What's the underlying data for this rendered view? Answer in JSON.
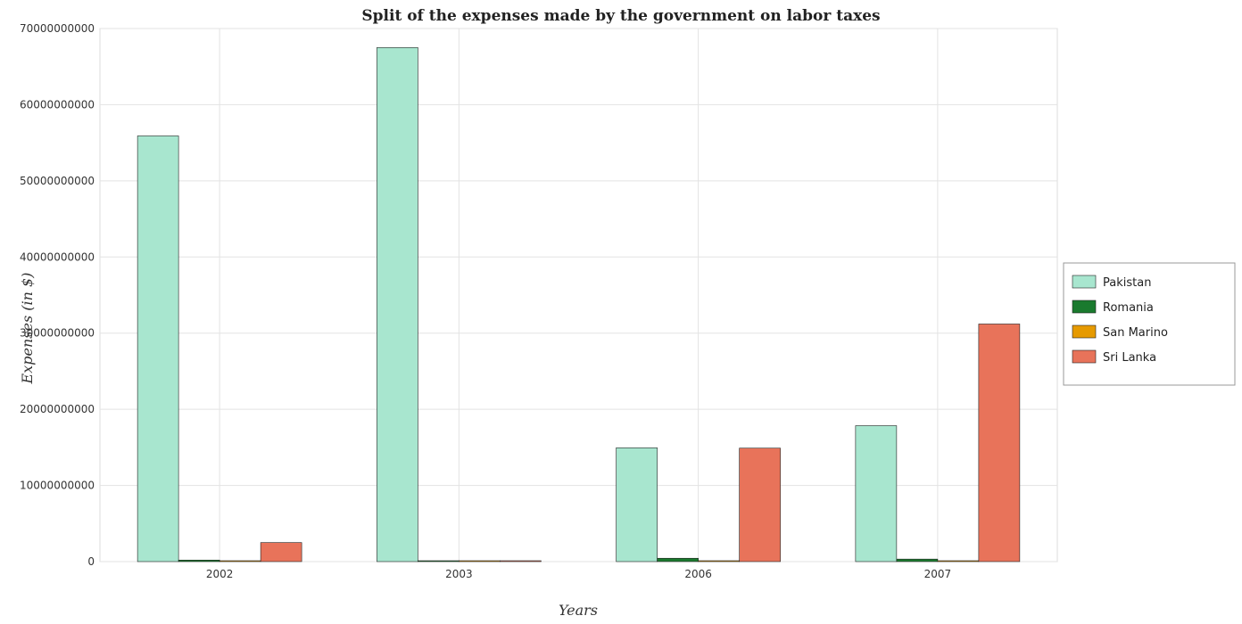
{
  "chart_data": {
    "type": "bar",
    "title": "Split of the expenses made by the government on labor taxes",
    "xlabel": "Years",
    "ylabel": "Expenses (in $)",
    "categories": [
      "2002",
      "2003",
      "2006",
      "2007"
    ],
    "ylim": [
      0,
      70000000000
    ],
    "yticks": [
      0,
      10000000000,
      20000000000,
      30000000000,
      40000000000,
      50000000000,
      60000000000,
      70000000000
    ],
    "ytick_labels": [
      "0",
      "10000000000",
      "20000000000",
      "30000000000",
      "40000000000",
      "50000000000",
      "60000000000",
      "70000000000"
    ],
    "grid": true,
    "legend_position": "right",
    "series": [
      {
        "name": "Pakistan",
        "color": "#a8e6cf",
        "values": [
          55900000000,
          67500000000,
          14950000000,
          17850000000
        ]
      },
      {
        "name": "Romania",
        "color": "#1a7a2e",
        "values": [
          200000000,
          20000000,
          440000000,
          330000000
        ]
      },
      {
        "name": "San Marino",
        "color": "#e69a00",
        "values": [
          30000000,
          20000000,
          40000000,
          40000000
        ]
      },
      {
        "name": "Sri Lanka",
        "color": "#e8735a",
        "values": [
          2500000000,
          30000000,
          14900000000,
          31200000000
        ]
      }
    ]
  }
}
